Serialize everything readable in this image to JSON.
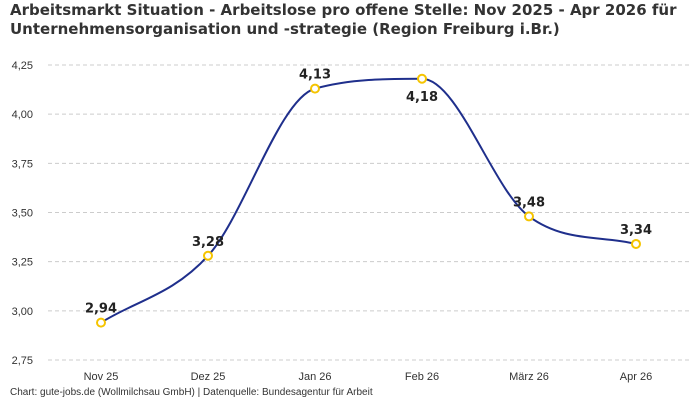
{
  "chart_data": {
    "type": "line",
    "title": "Arbeitsmarkt Situation - Arbeitslose pro offene Stelle: Nov 2025 - Apr 2026 für Unternehmensorganisation und -strategie (Region Freiburg i.Br.)",
    "categories": [
      "Nov 25",
      "Dez 25",
      "Jan 26",
      "Feb 26",
      "März 26",
      "Apr 26"
    ],
    "series": [
      {
        "values": [
          2.94,
          3.28,
          4.13,
          4.18,
          3.48,
          3.34
        ]
      }
    ],
    "data_labels": [
      "2,94",
      "3,28",
      "4,13",
      "4,18",
      "3,48",
      "3,34"
    ],
    "y_ticks": [
      "2,75",
      "3,00",
      "3,25",
      "3,50",
      "3,75",
      "4,00",
      "4,25"
    ],
    "ylim": [
      2.75,
      4.25
    ],
    "xlabel": "",
    "ylabel": "",
    "grid": true,
    "line_color": "#1f2f8c",
    "marker_color": "#f5c400"
  },
  "footer": {
    "source": "Chart: gute-jobs.de (Wollmilchsau GmbH) | Datenquelle: Bundesagentur für Arbeit"
  }
}
